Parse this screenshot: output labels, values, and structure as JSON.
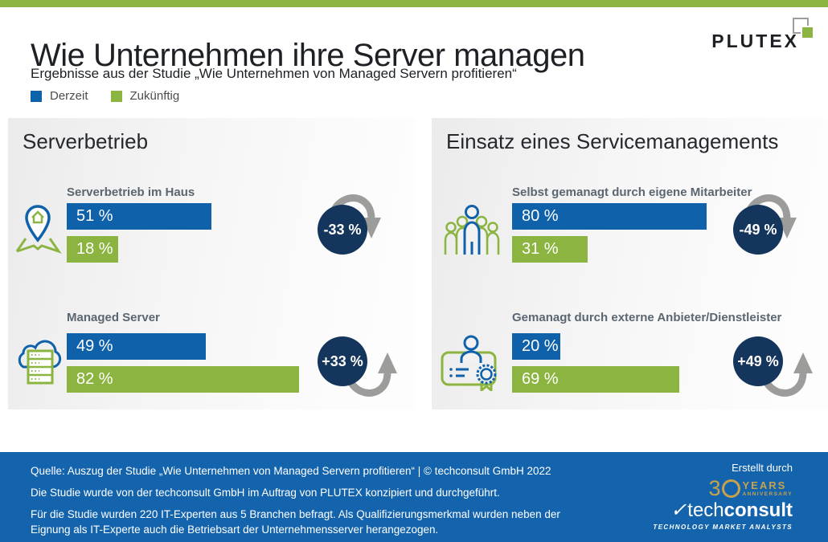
{
  "page": {
    "title": "Wie Unternehmen ihre Server managen",
    "subtitle": "Ergebnisse aus der Studie „Wie Unternehmen von Managed Servern profitieren“",
    "brand": "PLUTEX"
  },
  "legend": [
    {
      "label": "Derzeit",
      "color": "#0F62AA"
    },
    {
      "label": "Zukünftig",
      "color": "#8CB440"
    }
  ],
  "colors": {
    "accent_green": "#8CB440",
    "bar_blue": "#0F62AA",
    "circle_navy": "#14355C",
    "arrow_gray": "#9C9C9B",
    "footer_blue": "#1464AD",
    "anniversary_gold": "#C7A14C"
  },
  "chart_data": [
    {
      "type": "bar",
      "title": "Serverbetrieb",
      "categories": [
        "Serverbetrieb im Haus",
        "Managed Server"
      ],
      "series": [
        {
          "name": "Derzeit",
          "values": [
            51,
            49
          ]
        },
        {
          "name": "Zukünftig",
          "values": [
            18,
            82
          ]
        }
      ],
      "annotations": [
        "-33 %",
        "+33 %"
      ],
      "unit": "%",
      "xlim": [
        0,
        100
      ],
      "legend_position": "top-left",
      "grid": false
    },
    {
      "type": "bar",
      "title": "Einsatz eines Servicemanagements",
      "categories": [
        "Selbst gemanagt durch eigene Mitarbeiter",
        "Gemanagt durch externe Anbieter/Dienstleister"
      ],
      "series": [
        {
          "name": "Derzeit",
          "values": [
            80,
            20
          ]
        },
        {
          "name": "Zukünftig",
          "values": [
            31,
            69
          ]
        }
      ],
      "annotations": [
        "-49 %",
        "+49 %"
      ],
      "unit": "%",
      "xlim": [
        0,
        100
      ],
      "legend_position": "top-left",
      "grid": false
    }
  ],
  "panels": [
    {
      "heading": "Serverbetrieb",
      "rows": [
        {
          "icon": "map-pin-house-icon",
          "label": "Serverbetrieb im Haus",
          "current": 51,
          "future": 18,
          "current_display": "51 %",
          "future_display": "18 %",
          "delta_display": "-33 %",
          "direction": "down"
        },
        {
          "icon": "cloud-server-icon",
          "label": "Managed Server",
          "current": 49,
          "future": 82,
          "current_display": "49 %",
          "future_display": "82 %",
          "delta_display": "+33 %",
          "direction": "up"
        }
      ]
    },
    {
      "heading": "Einsatz eines Servicemanagements",
      "rows": [
        {
          "icon": "people-group-icon",
          "label": "Selbst gemanagt durch eigene Mitarbeiter",
          "current": 80,
          "future": 31,
          "current_display": "80 %",
          "future_display": "31 %",
          "delta_display": "-49 %",
          "direction": "down"
        },
        {
          "icon": "certificate-icon",
          "label": "Gemanagt durch externe Anbieter/Dienstleister",
          "current": 20,
          "future": 69,
          "current_display": "20 %",
          "future_display": "69 %",
          "delta_display": "+49 %",
          "direction": "up"
        }
      ]
    }
  ],
  "footer": {
    "line1": "Quelle: Auszug der Studie „Wie Unternehmen von Managed Servern profitieren“ | © techconsult GmbH 2022",
    "line2": "Die Studie wurde von der techconsult GmbH im Auftrag von PLUTEX konzipiert und durchgeführt.",
    "line3": "Für die Studie wurden 220 IT-Experten aus 5 Branchen befragt. Als Qualifizierungsmerkmal wurden neben der Eignung als IT-Experte auch die Betriebsart der Unternehmensserver herangezogen.",
    "credit": "Erstellt durch",
    "techconsult": {
      "years_digit": "3",
      "years_word": "YEARS",
      "anniversary": "ANNIVERSARY",
      "check": "✓",
      "name_light": "tech",
      "name_bold": "consult",
      "tagline": "TECHNOLOGY MARKET ANALYSTS"
    }
  }
}
